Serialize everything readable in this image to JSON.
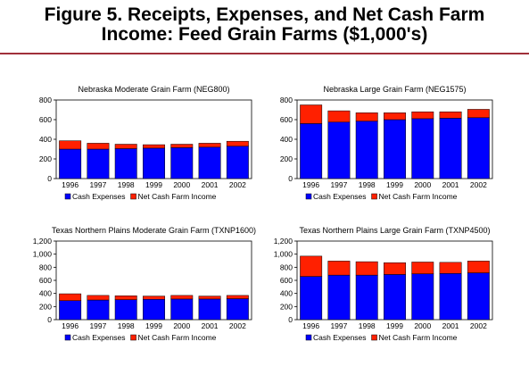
{
  "figure": {
    "title_line1": "Figure 5.  Receipts, Expenses, and Net Cash Farm",
    "title_line2": "Income:  Feed Grain Farms ($1,000's)"
  },
  "colors": {
    "expenses": "#0000ff",
    "net_income": "#ff2000",
    "rule": "#a0303a"
  },
  "chart_data": [
    {
      "type": "bar",
      "stacked": true,
      "title": "Nebraska Moderate Grain Farm (NEG800)",
      "categories": [
        "1996",
        "1997",
        "1998",
        "1999",
        "2000",
        "2001",
        "2002"
      ],
      "ylim": [
        0,
        800
      ],
      "yticks": [
        "0",
        "200",
        "400",
        "600",
        "800"
      ],
      "series": [
        {
          "name": "Cash Expenses",
          "values": [
            300,
            300,
            305,
            310,
            315,
            320,
            330
          ]
        },
        {
          "name": "Net Cash Farm Income",
          "values": [
            85,
            60,
            45,
            35,
            35,
            40,
            50
          ]
        }
      ],
      "legend": "bottom"
    },
    {
      "type": "bar",
      "stacked": true,
      "title": "Nebraska Large Grain Farm (NEG1575)",
      "categories": [
        "1996",
        "1997",
        "1998",
        "1999",
        "2000",
        "2001",
        "2002"
      ],
      "ylim": [
        0,
        800
      ],
      "yticks": [
        "0",
        "200",
        "400",
        "600",
        "800"
      ],
      "series": [
        {
          "name": "Cash Expenses",
          "values": [
            560,
            575,
            585,
            600,
            610,
            615,
            620
          ]
        },
        {
          "name": "Net Cash Farm Income",
          "values": [
            190,
            115,
            85,
            70,
            70,
            65,
            85
          ]
        }
      ],
      "legend": "bottom"
    },
    {
      "type": "bar",
      "stacked": true,
      "title": "Texas Northern Plains Moderate Grain Farm (TXNP1600)",
      "categories": [
        "1996",
        "1997",
        "1998",
        "1999",
        "2000",
        "2001",
        "2002"
      ],
      "ylim": [
        0,
        1200
      ],
      "yticks": [
        "0",
        "200",
        "400",
        "600",
        "800",
        "1,000",
        "1,200"
      ],
      "series": [
        {
          "name": "Cash Expenses",
          "values": [
            290,
            300,
            305,
            310,
            315,
            315,
            320
          ]
        },
        {
          "name": "Net Cash Farm Income",
          "values": [
            105,
            70,
            60,
            50,
            55,
            45,
            50
          ]
        }
      ],
      "legend": "bottom"
    },
    {
      "type": "bar",
      "stacked": true,
      "title": "Texas Northern Plains Large Grain Farm (TXNP4500)",
      "categories": [
        "1996",
        "1997",
        "1998",
        "1999",
        "2000",
        "2001",
        "2002"
      ],
      "ylim": [
        0,
        1200
      ],
      "yticks": [
        "0",
        "200",
        "400",
        "600",
        "800",
        "1,000",
        "1,200"
      ],
      "series": [
        {
          "name": "Cash Expenses",
          "values": [
            660,
            680,
            680,
            690,
            700,
            705,
            715
          ]
        },
        {
          "name": "Net Cash Farm Income",
          "values": [
            310,
            215,
            205,
            180,
            180,
            170,
            180
          ]
        }
      ],
      "legend": "bottom"
    }
  ]
}
